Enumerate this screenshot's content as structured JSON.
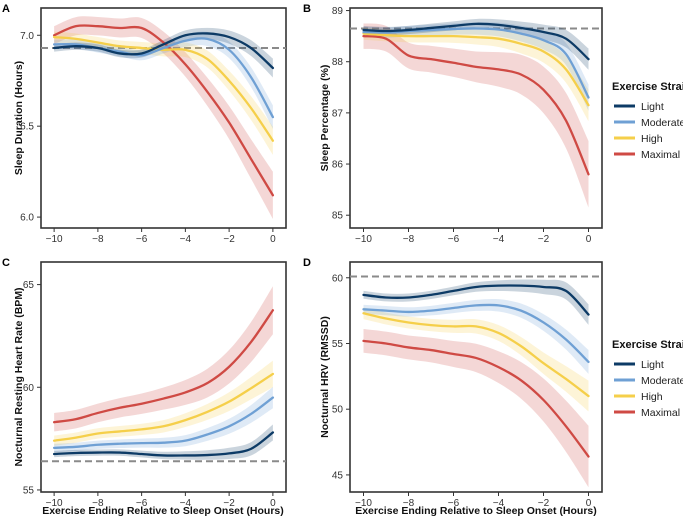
{
  "figure": {
    "xlabel": "Exercise Ending Relative to Sleep Onset (Hours)"
  },
  "legend": {
    "title": "Exercise Strain",
    "entries": [
      {
        "name": "Light",
        "color": "#0d3b66"
      },
      {
        "name": "Moderate",
        "color": "#6fa0d4"
      },
      {
        "name": "High",
        "color": "#f5cf4a"
      },
      {
        "name": "Maximal",
        "color": "#cf4a44"
      }
    ]
  },
  "chart_data": [
    {
      "type": "line",
      "panel": "A",
      "title": "",
      "xlabel": "",
      "ylabel": "Sleep Duration (Hours)",
      "xlim": [
        -10.6,
        0.6
      ],
      "ylim": [
        5.94,
        7.15
      ],
      "xticks": [
        -10,
        -8,
        -6,
        -4,
        -2,
        0
      ],
      "yticks": [
        6.0,
        6.5,
        7.0
      ],
      "ytick_labels": [
        "6.0",
        "6.5",
        "7.0"
      ],
      "reference_line": 6.93,
      "x": [
        -10,
        -9,
        -8,
        -7,
        -6,
        -5,
        -4,
        -3,
        -2,
        -1,
        0
      ],
      "series": [
        {
          "name": "Light",
          "values": [
            6.93,
            6.94,
            6.93,
            6.9,
            6.9,
            6.95,
            7.0,
            7.01,
            6.99,
            6.93,
            6.82
          ],
          "band": 0.02
        },
        {
          "name": "Moderate",
          "values": [
            6.95,
            6.95,
            6.93,
            6.91,
            6.89,
            6.93,
            6.97,
            6.98,
            6.92,
            6.77,
            6.55
          ],
          "band": 0.025
        },
        {
          "name": "High",
          "values": [
            6.99,
            6.98,
            6.96,
            6.94,
            6.93,
            6.92,
            6.92,
            6.87,
            6.75,
            6.6,
            6.42
          ],
          "band": 0.03
        },
        {
          "name": "Maximal",
          "values": [
            7.0,
            7.05,
            7.05,
            7.04,
            7.04,
            6.96,
            6.84,
            6.69,
            6.52,
            6.32,
            6.12
          ],
          "band": 0.05
        }
      ]
    },
    {
      "type": "line",
      "panel": "B",
      "title": "",
      "xlabel": "",
      "ylabel": "Sleep Percentage (%)",
      "xlim": [
        -10.6,
        0.6
      ],
      "ylim": [
        84.75,
        89.05
      ],
      "xticks": [
        -10,
        -8,
        -6,
        -4,
        -2,
        0
      ],
      "yticks": [
        85,
        86,
        87,
        88,
        89
      ],
      "ytick_labels": [
        "85",
        "86",
        "87",
        "88",
        "89"
      ],
      "reference_line": 88.65,
      "x": [
        -10,
        -9,
        -8,
        -7,
        -6,
        -5,
        -4,
        -3,
        -2,
        -1,
        0
      ],
      "series": [
        {
          "name": "Light",
          "values": [
            88.62,
            88.6,
            88.62,
            88.66,
            88.7,
            88.74,
            88.72,
            88.66,
            88.58,
            88.45,
            88.05
          ],
          "band": 0.08
        },
        {
          "name": "Moderate",
          "values": [
            88.58,
            88.57,
            88.6,
            88.62,
            88.64,
            88.65,
            88.63,
            88.55,
            88.42,
            88.15,
            87.3
          ],
          "band": 0.1
        },
        {
          "name": "High",
          "values": [
            88.55,
            88.52,
            88.5,
            88.5,
            88.5,
            88.48,
            88.45,
            88.35,
            88.2,
            87.85,
            87.15
          ],
          "band": 0.12
        },
        {
          "name": "Maximal",
          "values": [
            88.5,
            88.45,
            88.12,
            88.05,
            87.98,
            87.9,
            87.85,
            87.75,
            87.45,
            86.85,
            85.8
          ],
          "band": 0.25
        }
      ]
    },
    {
      "type": "line",
      "panel": "C",
      "title": "",
      "xlabel": "Exercise Ending Relative to Sleep Onset (Hours)",
      "ylabel": "Nocturnal Resting Heart Rate (BPM)",
      "xlim": [
        -10.6,
        0.6
      ],
      "ylim": [
        54.9,
        66.1
      ],
      "xticks": [
        -10,
        -8,
        -6,
        -4,
        -2,
        0
      ],
      "yticks": [
        55,
        60,
        65
      ],
      "ytick_labels": [
        "55",
        "60",
        "65"
      ],
      "reference_line": 56.4,
      "x": [
        -10,
        -9,
        -8,
        -7,
        -6,
        -5,
        -4,
        -3,
        -2,
        -1,
        0
      ],
      "series": [
        {
          "name": "Light",
          "values": [
            56.75,
            56.8,
            56.82,
            56.82,
            56.75,
            56.68,
            56.68,
            56.7,
            56.78,
            57.0,
            57.8
          ],
          "band": 0.15
        },
        {
          "name": "Moderate",
          "values": [
            57.05,
            57.1,
            57.2,
            57.25,
            57.28,
            57.3,
            57.4,
            57.7,
            58.1,
            58.7,
            59.5
          ],
          "band": 0.2
        },
        {
          "name": "High",
          "values": [
            57.4,
            57.55,
            57.75,
            57.85,
            57.95,
            58.1,
            58.4,
            58.8,
            59.3,
            59.95,
            60.65
          ],
          "band": 0.25
        },
        {
          "name": "Maximal",
          "values": [
            58.3,
            58.45,
            58.75,
            59.0,
            59.2,
            59.45,
            59.75,
            60.2,
            61.0,
            62.2,
            63.75
          ],
          "band": 0.45
        }
      ]
    },
    {
      "type": "line",
      "panel": "D",
      "title": "",
      "xlabel": "Exercise Ending Relative to Sleep Onset (Hours)",
      "ylabel": "Nocturnal HRV (RMSSD)",
      "xlim": [
        -10.6,
        0.6
      ],
      "ylim": [
        43.7,
        61.2
      ],
      "xticks": [
        -10,
        -8,
        -6,
        -4,
        -2,
        0
      ],
      "yticks": [
        45,
        50,
        55,
        60
      ],
      "ytick_labels": [
        "45",
        "50",
        "55",
        "60"
      ],
      "reference_line": 60.1,
      "x": [
        -10,
        -9,
        -8,
        -7,
        -6,
        -5,
        -4,
        -3,
        -2,
        -1,
        0
      ],
      "series": [
        {
          "name": "Light",
          "values": [
            58.7,
            58.5,
            58.5,
            58.7,
            59.0,
            59.3,
            59.4,
            59.4,
            59.3,
            59.0,
            57.2
          ],
          "band": 0.3
        },
        {
          "name": "Moderate",
          "values": [
            57.6,
            57.5,
            57.4,
            57.5,
            57.7,
            57.9,
            57.9,
            57.5,
            56.6,
            55.3,
            53.6
          ],
          "band": 0.35
        },
        {
          "name": "High",
          "values": [
            57.3,
            56.9,
            56.6,
            56.4,
            56.3,
            56.3,
            55.8,
            54.8,
            53.5,
            52.3,
            51.0
          ],
          "band": 0.45
        },
        {
          "name": "Maximal",
          "values": [
            55.2,
            55.0,
            54.7,
            54.5,
            54.2,
            53.9,
            53.2,
            52.2,
            50.7,
            48.7,
            46.4
          ],
          "band": 0.9
        }
      ]
    }
  ]
}
